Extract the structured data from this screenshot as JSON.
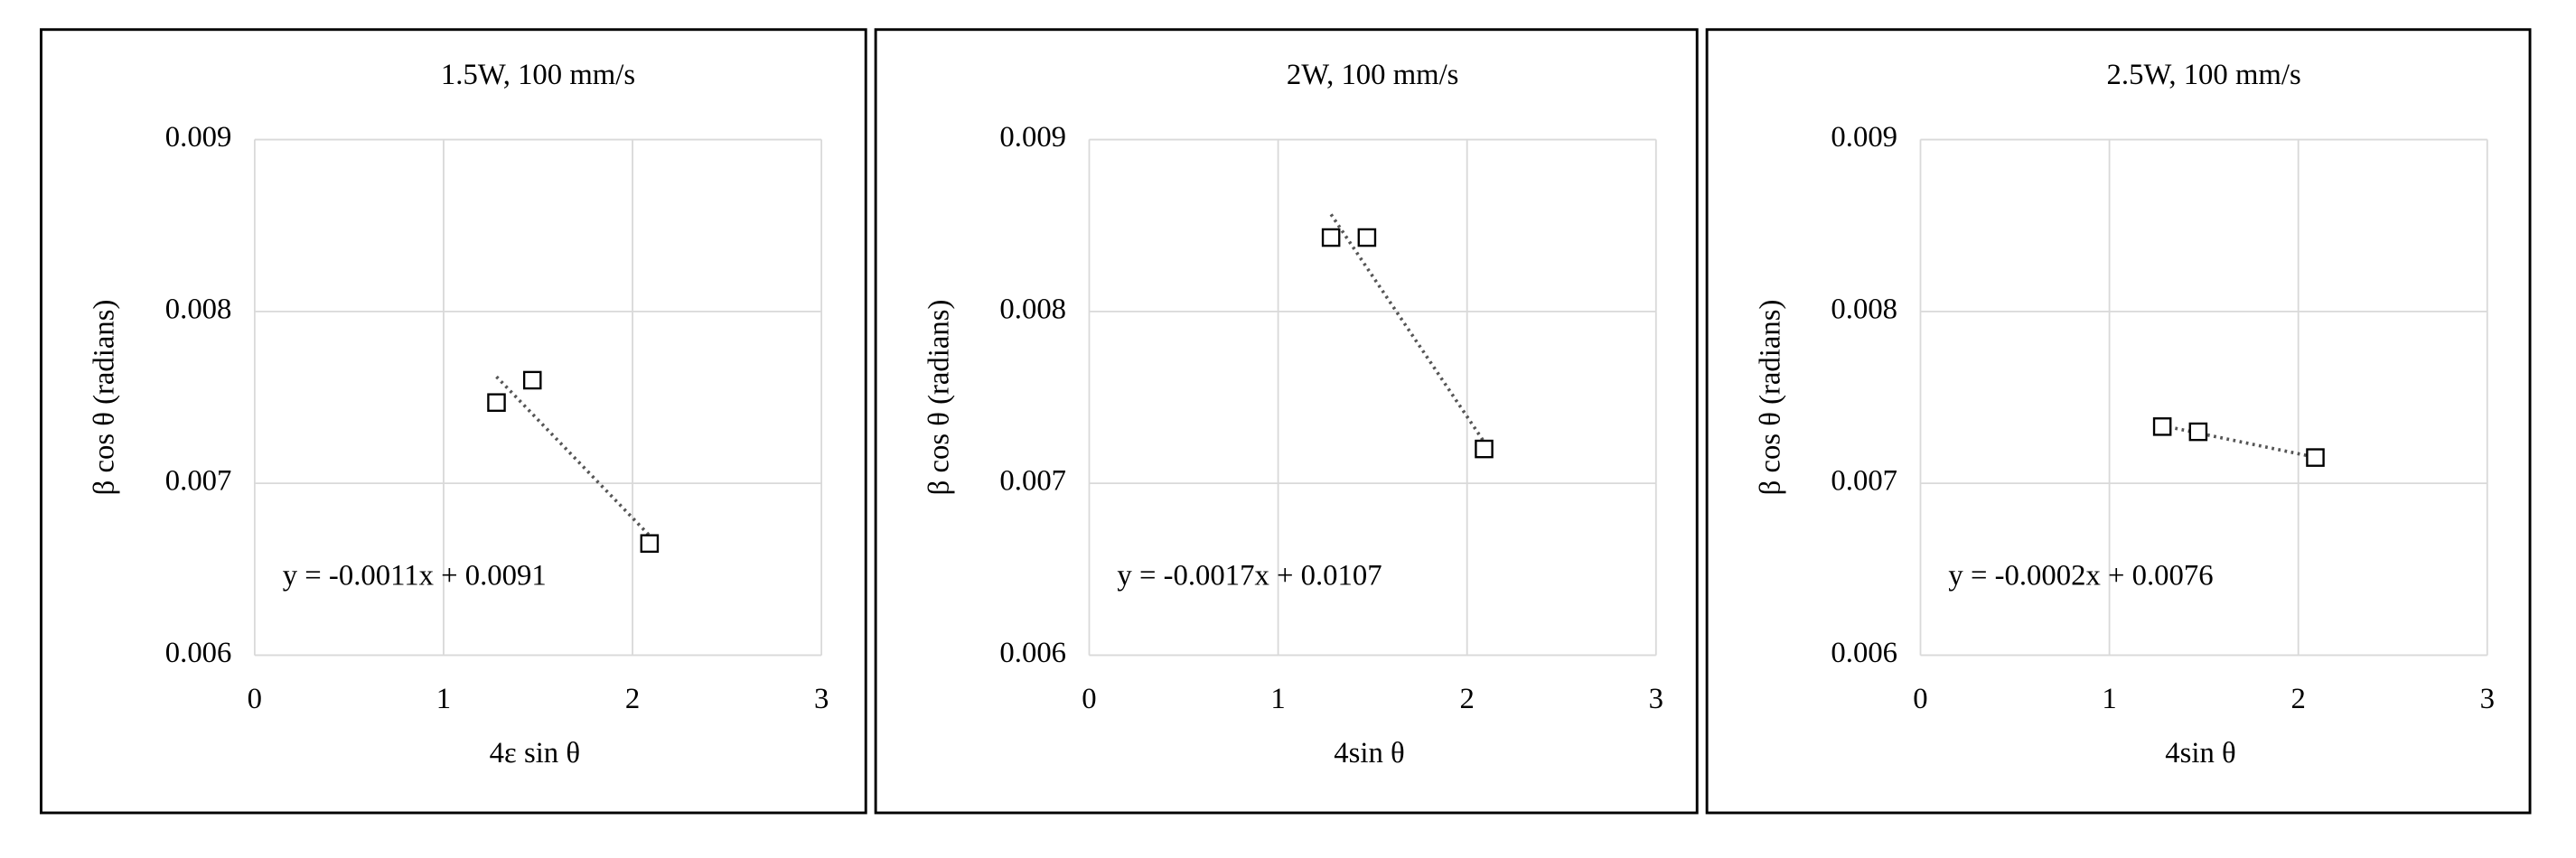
{
  "chart_data": [
    {
      "type": "scatter",
      "title": "1.5W, 100 mm/s",
      "x_label": "4ε sin θ",
      "y_label": "β cos θ (radians)",
      "x": [
        1.28,
        1.47,
        2.09
      ],
      "values": [
        0.00747,
        0.0076,
        0.00665
      ],
      "color": "#000000",
      "trendline": true,
      "annotation": "y = -0.0011x + 0.0091",
      "xlim": [
        0,
        3
      ],
      "xticks": [
        0,
        1,
        2,
        3
      ],
      "ylim": [
        0.006,
        0.009
      ],
      "yticks": [
        0.006,
        0.007,
        0.008,
        0.009
      ],
      "grid": true
    },
    {
      "type": "scatter",
      "title": "2W, 100 mm/s",
      "x_label": "4sin θ",
      "y_label": "β cos θ (radians)",
      "x": [
        1.28,
        1.47,
        2.09
      ],
      "values": [
        0.00843,
        0.00843,
        0.0072
      ],
      "color": "#000000",
      "trendline": true,
      "annotation": "y = -0.0017x + 0.0107",
      "xlim": [
        0,
        3
      ],
      "xticks": [
        0,
        1,
        2,
        3
      ],
      "ylim": [
        0.006,
        0.009
      ],
      "yticks": [
        0.006,
        0.007,
        0.008,
        0.009
      ],
      "grid": true
    },
    {
      "type": "scatter",
      "title": "2.5W, 100 mm/s",
      "x_label": "4sin θ",
      "y_label": "β cos θ (radians)",
      "x": [
        1.28,
        1.47,
        2.09
      ],
      "values": [
        0.00733,
        0.0073,
        0.00715
      ],
      "color": "#000000",
      "trendline": true,
      "annotation": "y = -0.0002x + 0.0076",
      "xlim": [
        0,
        3
      ],
      "xticks": [
        0,
        1,
        2,
        3
      ],
      "ylim": [
        0.006,
        0.009
      ],
      "yticks": [
        0.006,
        0.007,
        0.008,
        0.009
      ],
      "grid": true
    }
  ]
}
